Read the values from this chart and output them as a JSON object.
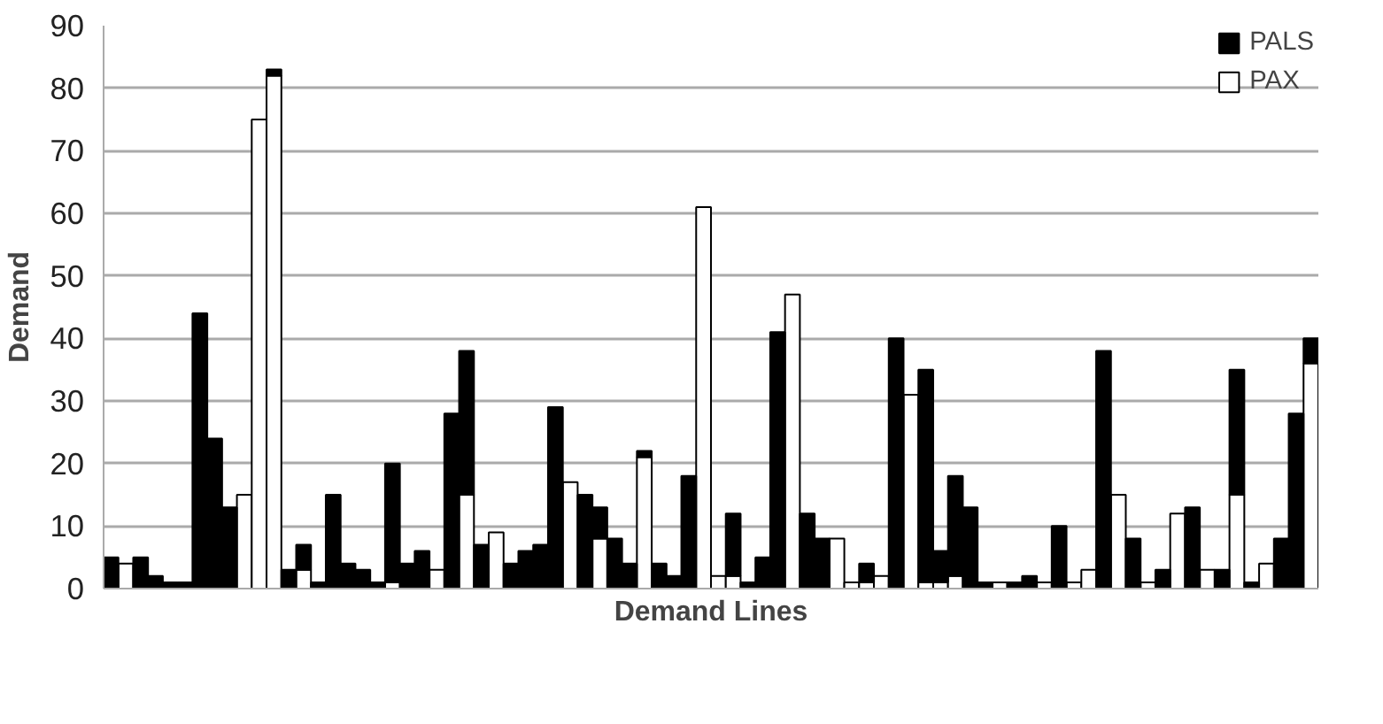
{
  "chart_data": {
    "type": "bar",
    "stacked": true,
    "xlabel": "Demand Lines",
    "ylabel": "Demand",
    "categories": [
      null,
      null,
      null,
      null,
      null,
      null,
      null,
      null,
      null,
      null,
      null,
      null,
      null,
      null,
      null,
      null,
      null,
      null,
      null,
      null,
      null,
      null,
      null,
      null,
      null,
      null,
      null,
      null,
      null,
      null,
      null,
      null,
      null,
      null,
      null,
      null,
      null,
      null,
      null,
      null,
      null,
      null,
      null,
      null,
      null,
      null,
      null,
      null,
      null,
      null,
      null,
      null,
      null,
      null,
      null,
      null,
      null,
      null,
      null,
      null,
      null,
      null,
      null,
      null,
      null,
      null,
      null,
      null,
      null,
      null,
      null,
      null,
      null,
      null,
      null,
      null,
      null,
      null,
      null,
      null,
      null,
      null
    ],
    "series": [
      {
        "name": "PAX",
        "color": "#ffffff",
        "values": [
          0,
          4,
          0,
          0,
          0,
          0,
          0,
          0,
          0,
          15,
          75,
          82,
          0,
          3,
          0,
          0,
          0,
          0,
          0,
          1,
          0,
          0,
          3,
          0,
          15,
          0,
          9,
          0,
          0,
          0,
          0,
          17,
          0,
          8,
          0,
          0,
          21,
          0,
          0,
          0,
          61,
          2,
          2,
          0,
          0,
          0,
          47,
          0,
          0,
          8,
          1,
          1,
          2,
          0,
          31,
          1,
          1,
          2,
          0,
          0,
          1,
          0,
          0,
          1,
          0,
          1,
          3,
          0,
          15,
          0,
          1,
          0,
          12,
          0,
          3,
          0,
          15,
          0,
          4,
          0,
          0,
          36
        ]
      },
      {
        "name": "PALS",
        "color": "#000000",
        "values": [
          5,
          0,
          5,
          2,
          1,
          1,
          44,
          24,
          13,
          0,
          0,
          1,
          3,
          4,
          1,
          15,
          4,
          3,
          1,
          19,
          4,
          6,
          0,
          28,
          23,
          7,
          0,
          4,
          6,
          7,
          29,
          0,
          15,
          5,
          8,
          4,
          1,
          4,
          2,
          18,
          0,
          0,
          10,
          1,
          5,
          41,
          0,
          12,
          8,
          0,
          0,
          3,
          0,
          40,
          0,
          34,
          5,
          16,
          13,
          1,
          0,
          1,
          2,
          0,
          10,
          0,
          0,
          38,
          0,
          8,
          0,
          3,
          0,
          13,
          0,
          3,
          20,
          1,
          0,
          8,
          28,
          4
        ]
      }
    ],
    "ylim": [
      0,
      90
    ],
    "yticks": [
      0,
      10,
      20,
      30,
      40,
      50,
      60,
      70,
      80,
      90
    ],
    "grid": "y",
    "legend": "top right"
  }
}
